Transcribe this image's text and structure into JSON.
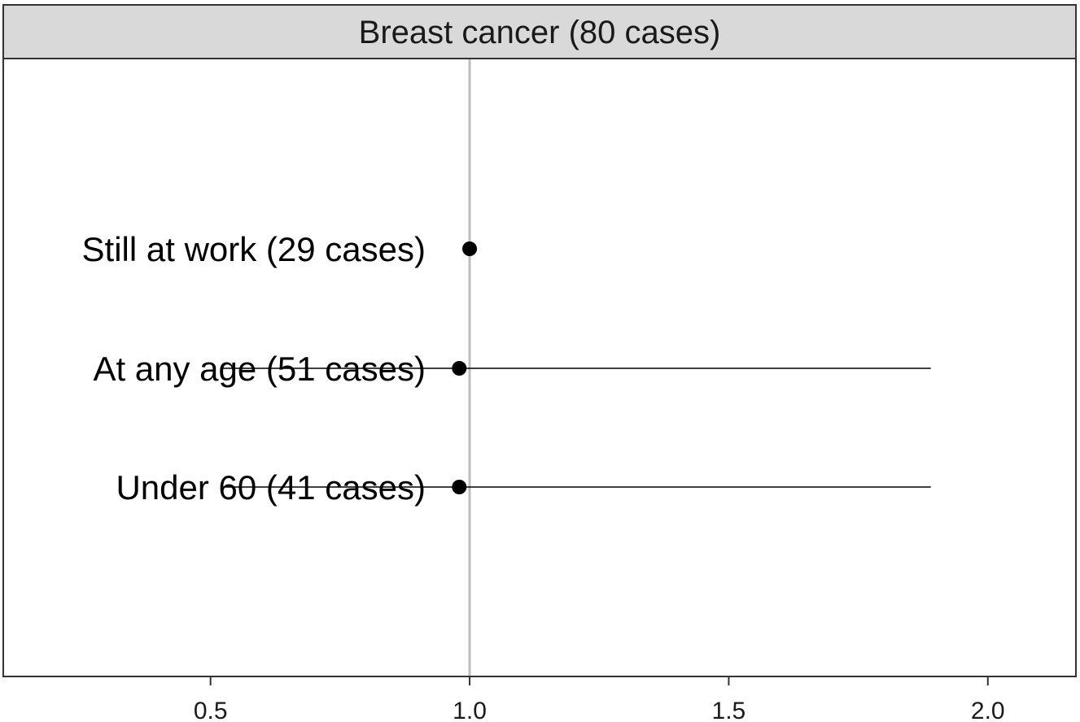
{
  "chart_data": {
    "type": "forest",
    "title": "Breast cancer (80 cases)",
    "xlabel": "",
    "ylabel": "",
    "xlim": [
      0.1,
      2.17
    ],
    "x_ticks": [
      0.5,
      1.0,
      1.5,
      2.0
    ],
    "x_tick_labels": [
      "0.5",
      "1.0",
      "1.5",
      "2.0"
    ],
    "reference_line": 1.0,
    "grid": false,
    "rows": [
      {
        "label": "Still at work (29 cases)",
        "estimate": 1.0,
        "lower": null,
        "upper": null
      },
      {
        "label": "At any age (51 cases)",
        "estimate": 0.98,
        "lower": 0.52,
        "upper": 1.89
      },
      {
        "label": "Under 60 (41 cases)",
        "estimate": 0.98,
        "lower": 0.52,
        "upper": 1.89
      }
    ],
    "colors": {
      "strip_fill": "#d9d9d9",
      "panel_border": "#333333",
      "reference_line": "#bdbdbd",
      "point": "#000000",
      "ci_line": "#000000"
    }
  }
}
